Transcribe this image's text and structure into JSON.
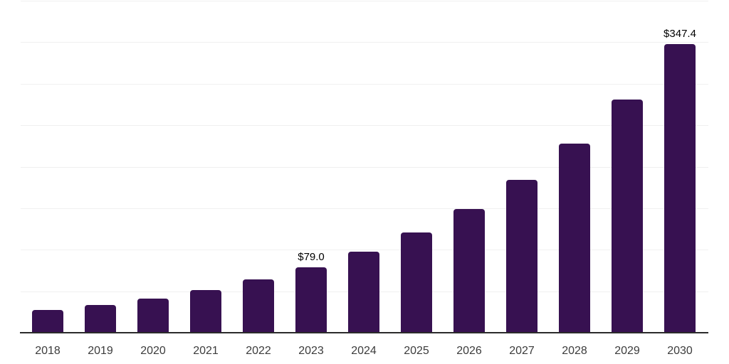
{
  "chart_data": {
    "type": "bar",
    "categories": [
      "2018",
      "2019",
      "2020",
      "2021",
      "2022",
      "2023",
      "2024",
      "2025",
      "2026",
      "2027",
      "2028",
      "2029",
      "2030"
    ],
    "values": [
      27.5,
      33.0,
      41.5,
      51.5,
      64.0,
      79.0,
      97.6,
      120.6,
      149.0,
      184.2,
      227.5,
      281.2,
      347.4
    ],
    "point_labels": [
      "",
      "",
      "",
      "",
      "",
      "$79.0",
      "",
      "",
      "",
      "",
      "",
      "",
      "$347.4"
    ],
    "title": "",
    "xlabel": "",
    "ylabel": "",
    "ylim": [
      0,
      400
    ],
    "gridline_step": 50,
    "grid": "horizontal",
    "legend": "none",
    "colors": {
      "bar": "#371151",
      "gridline": "#F0F0F0",
      "axis": "#2B2B2B",
      "data_label": "#000000",
      "tick_label": "#3C3C3C",
      "background": "#FFFFFF"
    }
  }
}
